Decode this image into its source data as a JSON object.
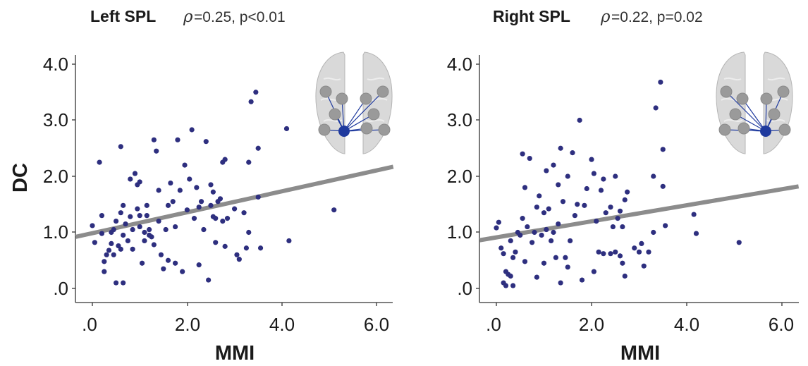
{
  "chart_data": [
    {
      "type": "scatter",
      "title": "Left SPL",
      "stat_rho_symbol": "ρ",
      "stat_text": "=0.25, p<0.01",
      "xlabel": "MMI",
      "ylabel": "DC",
      "xlim": [
        -0.35,
        6.35
      ],
      "ylim": [
        -0.25,
        4.15
      ],
      "xticks": [
        0,
        2,
        4,
        6
      ],
      "xtick_labels": [
        ".0",
        "2.0",
        "4.0",
        "6.0"
      ],
      "yticks": [
        0,
        1,
        2,
        3,
        4
      ],
      "ytick_labels": [
        ".0",
        "1.0",
        "2.0",
        "3.0",
        "4.0"
      ],
      "fit_line": {
        "x": [
          -0.35,
          6.35
        ],
        "y": [
          0.92,
          2.17
        ]
      },
      "inset": "brain-connectivity-left-spl",
      "points": [
        {
          "x": 0.0,
          "y": 1.12
        },
        {
          "x": 0.05,
          "y": 0.82
        },
        {
          "x": 0.15,
          "y": 2.25
        },
        {
          "x": 0.2,
          "y": 1.3
        },
        {
          "x": 0.2,
          "y": 0.98
        },
        {
          "x": 0.25,
          "y": 0.48
        },
        {
          "x": 0.25,
          "y": 0.3
        },
        {
          "x": 0.3,
          "y": 0.6
        },
        {
          "x": 0.35,
          "y": 0.68
        },
        {
          "x": 0.4,
          "y": 0.8
        },
        {
          "x": 0.4,
          "y": 1.0
        },
        {
          "x": 0.45,
          "y": 1.05
        },
        {
          "x": 0.45,
          "y": 0.6
        },
        {
          "x": 0.5,
          "y": 0.1
        },
        {
          "x": 0.5,
          "y": 1.2
        },
        {
          "x": 0.55,
          "y": 0.76
        },
        {
          "x": 0.6,
          "y": 2.53
        },
        {
          "x": 0.6,
          "y": 1.35
        },
        {
          "x": 0.6,
          "y": 0.7
        },
        {
          "x": 0.65,
          "y": 0.1
        },
        {
          "x": 0.65,
          "y": 1.48
        },
        {
          "x": 0.65,
          "y": 0.95
        },
        {
          "x": 0.7,
          "y": 1.15
        },
        {
          "x": 0.75,
          "y": 0.85
        },
        {
          "x": 0.8,
          "y": 1.28
        },
        {
          "x": 0.8,
          "y": 1.95
        },
        {
          "x": 0.85,
          "y": 1.05
        },
        {
          "x": 0.85,
          "y": 0.7
        },
        {
          "x": 0.9,
          "y": 2.05
        },
        {
          "x": 0.95,
          "y": 1.85
        },
        {
          "x": 0.95,
          "y": 1.42
        },
        {
          "x": 1.0,
          "y": 1.9
        },
        {
          "x": 1.0,
          "y": 1.3
        },
        {
          "x": 1.0,
          "y": 1.1
        },
        {
          "x": 1.05,
          "y": 0.45
        },
        {
          "x": 1.1,
          "y": 1.0
        },
        {
          "x": 1.1,
          "y": 0.85
        },
        {
          "x": 1.15,
          "y": 1.3
        },
        {
          "x": 1.15,
          "y": 1.48
        },
        {
          "x": 1.2,
          "y": 1.05
        },
        {
          "x": 1.2,
          "y": 0.95
        },
        {
          "x": 1.25,
          "y": 0.92
        },
        {
          "x": 1.3,
          "y": 0.78
        },
        {
          "x": 1.3,
          "y": 2.65
        },
        {
          "x": 1.35,
          "y": 2.45
        },
        {
          "x": 1.4,
          "y": 1.75
        },
        {
          "x": 1.4,
          "y": 1.2
        },
        {
          "x": 1.45,
          "y": 0.6
        },
        {
          "x": 1.5,
          "y": 0.35
        },
        {
          "x": 1.55,
          "y": 1.05
        },
        {
          "x": 1.6,
          "y": 1.48
        },
        {
          "x": 1.6,
          "y": 0.5
        },
        {
          "x": 1.65,
          "y": 1.88
        },
        {
          "x": 1.7,
          "y": 1.55
        },
        {
          "x": 1.75,
          "y": 0.45
        },
        {
          "x": 1.75,
          "y": 1.1
        },
        {
          "x": 1.8,
          "y": 2.65
        },
        {
          "x": 1.85,
          "y": 1.75
        },
        {
          "x": 1.9,
          "y": 0.3
        },
        {
          "x": 1.95,
          "y": 2.2
        },
        {
          "x": 2.0,
          "y": 1.4
        },
        {
          "x": 2.05,
          "y": 1.95
        },
        {
          "x": 2.1,
          "y": 2.83
        },
        {
          "x": 2.15,
          "y": 1.25
        },
        {
          "x": 2.2,
          "y": 1.8
        },
        {
          "x": 2.25,
          "y": 1.45
        },
        {
          "x": 2.25,
          "y": 0.42
        },
        {
          "x": 2.3,
          "y": 1.55
        },
        {
          "x": 2.35,
          "y": 1.05
        },
        {
          "x": 2.4,
          "y": 2.62
        },
        {
          "x": 2.45,
          "y": 0.15
        },
        {
          "x": 2.5,
          "y": 1.85
        },
        {
          "x": 2.5,
          "y": 1.48
        },
        {
          "x": 2.55,
          "y": 1.72
        },
        {
          "x": 2.55,
          "y": 1.28
        },
        {
          "x": 2.6,
          "y": 1.25
        },
        {
          "x": 2.6,
          "y": 0.82
        },
        {
          "x": 2.65,
          "y": 1.55
        },
        {
          "x": 2.7,
          "y": 1.6
        },
        {
          "x": 2.75,
          "y": 2.25
        },
        {
          "x": 2.75,
          "y": 1.2
        },
        {
          "x": 2.8,
          "y": 0.75
        },
        {
          "x": 2.8,
          "y": 2.3
        },
        {
          "x": 2.85,
          "y": 1.25
        },
        {
          "x": 3.0,
          "y": 1.42
        },
        {
          "x": 3.05,
          "y": 0.6
        },
        {
          "x": 3.1,
          "y": 0.52
        },
        {
          "x": 3.2,
          "y": 1.35
        },
        {
          "x": 3.25,
          "y": 0.72
        },
        {
          "x": 3.3,
          "y": 1.0
        },
        {
          "x": 3.3,
          "y": 2.25
        },
        {
          "x": 3.35,
          "y": 3.33
        },
        {
          "x": 3.45,
          "y": 3.5
        },
        {
          "x": 3.5,
          "y": 2.5
        },
        {
          "x": 3.5,
          "y": 1.63
        },
        {
          "x": 3.55,
          "y": 0.72
        },
        {
          "x": 4.1,
          "y": 2.85
        },
        {
          "x": 4.15,
          "y": 0.85
        },
        {
          "x": 5.1,
          "y": 1.4
        }
      ]
    },
    {
      "type": "scatter",
      "title": "Right SPL",
      "stat_rho_symbol": "ρ",
      "stat_text": "=0.22, p=0.02",
      "xlabel": "MMI",
      "ylabel": "",
      "xlim": [
        -0.35,
        6.35
      ],
      "ylim": [
        -0.25,
        4.15
      ],
      "xticks": [
        0,
        2,
        4,
        6
      ],
      "xtick_labels": [
        ".0",
        "2.0",
        "4.0",
        "6.0"
      ],
      "yticks": [
        0,
        1,
        2,
        3,
        4
      ],
      "ytick_labels": [
        ".0",
        "1.0",
        "2.0",
        "3.0",
        "4.0"
      ],
      "fit_line": {
        "x": [
          -0.35,
          6.35
        ],
        "y": [
          0.86,
          1.82
        ]
      },
      "inset": "brain-connectivity-right-spl",
      "points": [
        {
          "x": 0.0,
          "y": 1.08
        },
        {
          "x": 0.05,
          "y": 1.18
        },
        {
          "x": 0.1,
          "y": 0.72
        },
        {
          "x": 0.15,
          "y": 0.62
        },
        {
          "x": 0.15,
          "y": 0.1
        },
        {
          "x": 0.2,
          "y": 0.3
        },
        {
          "x": 0.2,
          "y": 0.05
        },
        {
          "x": 0.25,
          "y": 0.25
        },
        {
          "x": 0.3,
          "y": 0.85
        },
        {
          "x": 0.3,
          "y": 0.22
        },
        {
          "x": 0.35,
          "y": 0.55
        },
        {
          "x": 0.35,
          "y": 0.05
        },
        {
          "x": 0.4,
          "y": 0.65
        },
        {
          "x": 0.45,
          "y": 1.0
        },
        {
          "x": 0.5,
          "y": 0.95
        },
        {
          "x": 0.55,
          "y": 2.4
        },
        {
          "x": 0.55,
          "y": 1.25
        },
        {
          "x": 0.6,
          "y": 1.8
        },
        {
          "x": 0.6,
          "y": 0.48
        },
        {
          "x": 0.65,
          "y": 1.1
        },
        {
          "x": 0.7,
          "y": 2.32
        },
        {
          "x": 0.75,
          "y": 0.82
        },
        {
          "x": 0.8,
          "y": 1.0
        },
        {
          "x": 0.85,
          "y": 1.45
        },
        {
          "x": 0.85,
          "y": 0.2
        },
        {
          "x": 0.9,
          "y": 1.65
        },
        {
          "x": 0.95,
          "y": 0.95
        },
        {
          "x": 1.0,
          "y": 1.35
        },
        {
          "x": 1.0,
          "y": 0.45
        },
        {
          "x": 1.05,
          "y": 2.1
        },
        {
          "x": 1.05,
          "y": 1.05
        },
        {
          "x": 1.1,
          "y": 1.42
        },
        {
          "x": 1.15,
          "y": 0.85
        },
        {
          "x": 1.2,
          "y": 2.2
        },
        {
          "x": 1.2,
          "y": 1.0
        },
        {
          "x": 1.25,
          "y": 0.55
        },
        {
          "x": 1.3,
          "y": 1.85
        },
        {
          "x": 1.3,
          "y": 1.15
        },
        {
          "x": 1.35,
          "y": 2.5
        },
        {
          "x": 1.35,
          "y": 0.1
        },
        {
          "x": 1.4,
          "y": 1.55
        },
        {
          "x": 1.45,
          "y": 0.55
        },
        {
          "x": 1.5,
          "y": 2.0
        },
        {
          "x": 1.5,
          "y": 0.38
        },
        {
          "x": 1.55,
          "y": 0.85
        },
        {
          "x": 1.6,
          "y": 2.42
        },
        {
          "x": 1.65,
          "y": 1.3
        },
        {
          "x": 1.7,
          "y": 1.5
        },
        {
          "x": 1.75,
          "y": 3.0
        },
        {
          "x": 1.8,
          "y": 0.15
        },
        {
          "x": 1.85,
          "y": 1.48
        },
        {
          "x": 1.9,
          "y": 1.78
        },
        {
          "x": 2.0,
          "y": 2.3
        },
        {
          "x": 2.05,
          "y": 2.05
        },
        {
          "x": 2.05,
          "y": 0.3
        },
        {
          "x": 2.1,
          "y": 1.2
        },
        {
          "x": 2.15,
          "y": 0.65
        },
        {
          "x": 2.2,
          "y": 1.75
        },
        {
          "x": 2.25,
          "y": 1.95
        },
        {
          "x": 2.25,
          "y": 0.62
        },
        {
          "x": 2.3,
          "y": 1.35
        },
        {
          "x": 2.4,
          "y": 1.45
        },
        {
          "x": 2.4,
          "y": 0.62
        },
        {
          "x": 2.45,
          "y": 1.1
        },
        {
          "x": 2.5,
          "y": 2.0
        },
        {
          "x": 2.5,
          "y": 0.65
        },
        {
          "x": 2.55,
          "y": 1.25
        },
        {
          "x": 2.6,
          "y": 1.38
        },
        {
          "x": 2.6,
          "y": 0.58
        },
        {
          "x": 2.65,
          "y": 0.45
        },
        {
          "x": 2.65,
          "y": 1.1
        },
        {
          "x": 2.7,
          "y": 0.22
        },
        {
          "x": 2.7,
          "y": 1.58
        },
        {
          "x": 2.75,
          "y": 1.72
        },
        {
          "x": 2.9,
          "y": 0.72
        },
        {
          "x": 3.0,
          "y": 0.65
        },
        {
          "x": 3.05,
          "y": 0.8
        },
        {
          "x": 3.1,
          "y": 0.4
        },
        {
          "x": 3.2,
          "y": 0.65
        },
        {
          "x": 3.3,
          "y": 2.0
        },
        {
          "x": 3.3,
          "y": 1.0
        },
        {
          "x": 3.35,
          "y": 3.22
        },
        {
          "x": 3.45,
          "y": 3.68
        },
        {
          "x": 3.5,
          "y": 2.48
        },
        {
          "x": 3.5,
          "y": 1.82
        },
        {
          "x": 3.55,
          "y": 1.12
        },
        {
          "x": 4.15,
          "y": 1.32
        },
        {
          "x": 4.2,
          "y": 0.98
        },
        {
          "x": 5.1,
          "y": 0.82
        }
      ]
    }
  ]
}
